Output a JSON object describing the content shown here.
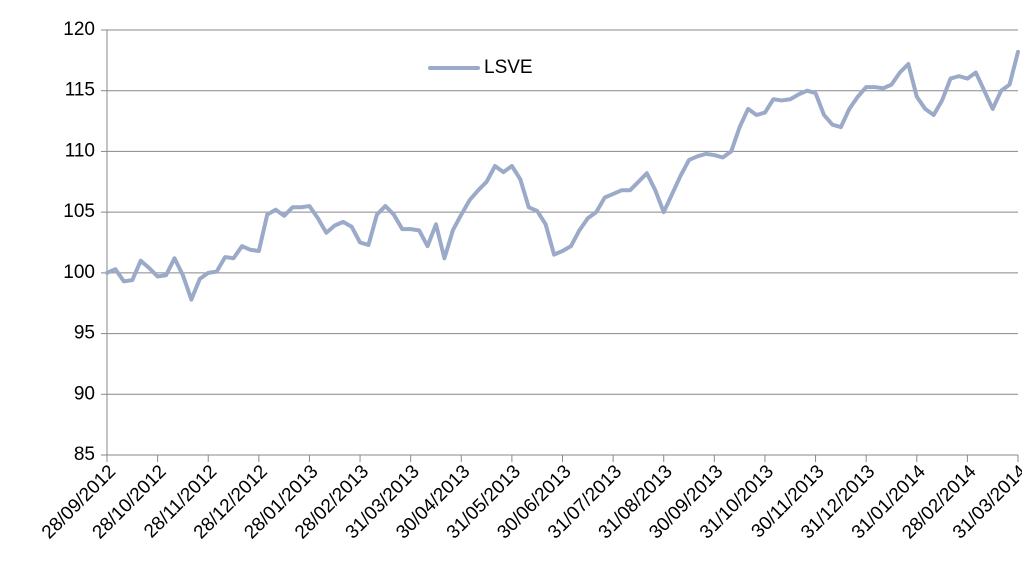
{
  "chart_data": {
    "type": "line",
    "categories": [
      "28/09/2012",
      null,
      null,
      null,
      null,
      null,
      "28/10/2012",
      null,
      null,
      null,
      null,
      null,
      "28/11/2012",
      null,
      null,
      null,
      null,
      null,
      "28/12/2012",
      null,
      null,
      null,
      null,
      null,
      "28/01/2013",
      null,
      null,
      null,
      null,
      null,
      "28/02/2013",
      null,
      null,
      null,
      null,
      null,
      "31/03/2013",
      null,
      null,
      null,
      null,
      null,
      "30/04/2013",
      null,
      null,
      null,
      null,
      null,
      "31/05/2013",
      null,
      null,
      null,
      null,
      null,
      "30/06/2013",
      null,
      null,
      null,
      null,
      null,
      "31/07/2013",
      null,
      null,
      null,
      null,
      null,
      "31/08/2013",
      null,
      null,
      null,
      null,
      null,
      "30/09/2013",
      null,
      null,
      null,
      null,
      null,
      "31/10/2013",
      null,
      null,
      null,
      null,
      null,
      "30/11/2013",
      null,
      null,
      null,
      null,
      null,
      "31/12/2013",
      null,
      null,
      null,
      null,
      null,
      "31/01/2014",
      null,
      null,
      null,
      null,
      null,
      "28/02/2014",
      null,
      null,
      null,
      null,
      null,
      "31/03/2014"
    ],
    "series": [
      {
        "name": "LSVE",
        "color": "#9aaac8",
        "values": [
          100,
          100.3,
          99.3,
          99.4,
          101,
          100.4,
          99.7,
          99.8,
          101.2,
          99.8,
          97.8,
          99.5,
          100,
          100.1,
          101.3,
          101.2,
          102.2,
          101.9,
          101.8,
          104.8,
          105.2,
          104.7,
          105.4,
          105.4,
          105.5,
          104.5,
          103.3,
          103.9,
          104.2,
          103.8,
          102.5,
          102.3,
          104.8,
          105.5,
          104.8,
          103.6,
          103.6,
          103.5,
          102.2,
          104,
          101.2,
          103.5,
          104.8,
          106,
          106.8,
          107.5,
          108.8,
          108.3,
          108.8,
          107.7,
          105.4,
          105.1,
          104,
          101.5,
          101.8,
          102.2,
          103.5,
          104.5,
          105,
          106.2,
          106.5,
          106.8,
          106.8,
          107.5,
          108.2,
          106.8,
          105,
          106.5,
          108,
          109.3,
          109.6,
          109.8,
          109.7,
          109.5,
          110,
          112,
          113.5,
          113,
          113.2,
          114.3,
          114.2,
          114.3,
          114.7,
          115,
          114.8,
          113,
          112.2,
          112,
          113.5,
          114.5,
          115.3,
          115.3,
          115.2,
          115.5,
          116.5,
          117.2,
          114.5,
          113.5,
          113,
          114.2,
          116,
          116.2,
          116,
          116.5,
          115,
          113.5,
          115,
          115.5,
          118.2
        ]
      }
    ],
    "ylim": [
      85,
      120
    ],
    "yticks": [
      85,
      90,
      95,
      100,
      105,
      110,
      115,
      120
    ],
    "grid": true,
    "legend": "top"
  }
}
